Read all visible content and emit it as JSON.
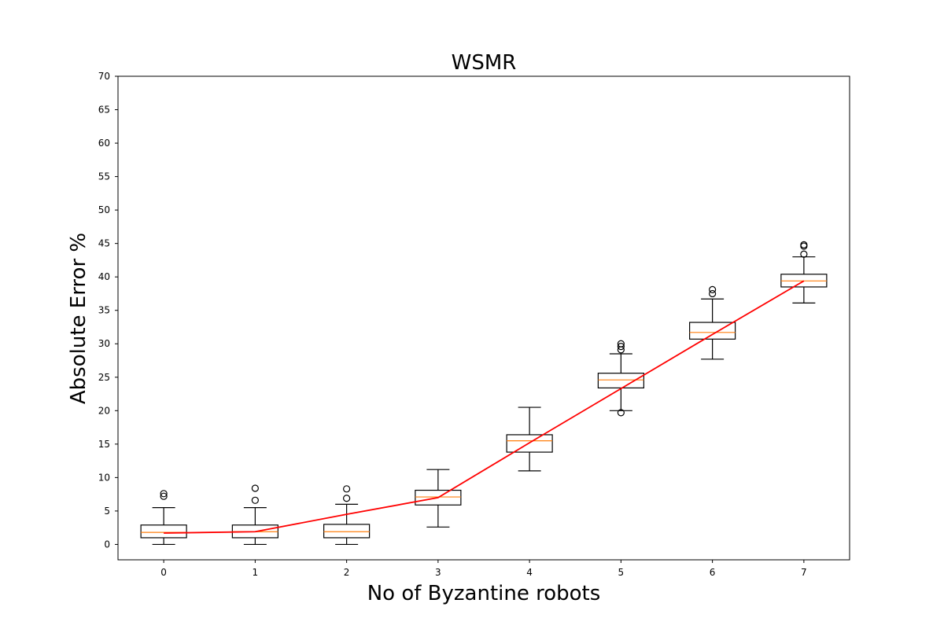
{
  "chart_data": {
    "type": "box",
    "title": "WSMR",
    "xlabel": "No of Byzantine robots",
    "ylabel": "Absolute Error %",
    "categories": [
      "0",
      "1",
      "2",
      "3",
      "4",
      "5",
      "6",
      "7"
    ],
    "xlim": [
      -0.5,
      7.5
    ],
    "ylim": [
      -2.3,
      70
    ],
    "yticks": [
      "0",
      "5",
      "10",
      "15",
      "20",
      "25",
      "30",
      "35",
      "40",
      "45",
      "50",
      "55",
      "60",
      "65",
      "70"
    ],
    "grid": false,
    "boxes": [
      {
        "x": 0,
        "whisker_low": 0.0,
        "q1": 1.0,
        "median": 1.8,
        "q3": 2.9,
        "whisker_high": 5.5,
        "outliers": [
          7.2,
          7.6
        ]
      },
      {
        "x": 1,
        "whisker_low": 0.0,
        "q1": 1.0,
        "median": 1.9,
        "q3": 2.9,
        "whisker_high": 5.5,
        "outliers": [
          6.6,
          8.4
        ]
      },
      {
        "x": 2,
        "whisker_low": 0.0,
        "q1": 1.0,
        "median": 1.9,
        "q3": 3.0,
        "whisker_high": 6.0,
        "outliers": [
          6.9,
          8.3
        ]
      },
      {
        "x": 3,
        "whisker_low": 2.6,
        "q1": 5.9,
        "median": 7.1,
        "q3": 8.1,
        "whisker_high": 11.2,
        "outliers": []
      },
      {
        "x": 4,
        "whisker_low": 11.0,
        "q1": 13.8,
        "median": 15.5,
        "q3": 16.4,
        "whisker_high": 20.5,
        "outliers": []
      },
      {
        "x": 5,
        "whisker_low": 20.0,
        "q1": 23.4,
        "median": 24.6,
        "q3": 25.6,
        "whisker_high": 28.5,
        "outliers": [
          19.7,
          29.1,
          29.6,
          30.0
        ]
      },
      {
        "x": 6,
        "whisker_low": 27.7,
        "q1": 30.7,
        "median": 31.7,
        "q3": 33.2,
        "whisker_high": 36.7,
        "outliers": [
          37.5,
          38.1
        ]
      },
      {
        "x": 7,
        "whisker_low": 36.1,
        "q1": 38.5,
        "median": 39.4,
        "q3": 40.4,
        "whisker_high": 43.0,
        "outliers": [
          43.4,
          44.6,
          44.8
        ]
      }
    ],
    "series": [
      {
        "type": "line",
        "x": [
          0,
          1,
          2,
          3,
          4,
          5,
          6,
          7
        ],
        "values": [
          1.7,
          1.9,
          4.5,
          7.0,
          15.2,
          23.3,
          31.4,
          39.4
        ]
      }
    ],
    "colors": {
      "box": "#000000",
      "median": "#ff7f0e",
      "line": "#ff0000"
    }
  }
}
